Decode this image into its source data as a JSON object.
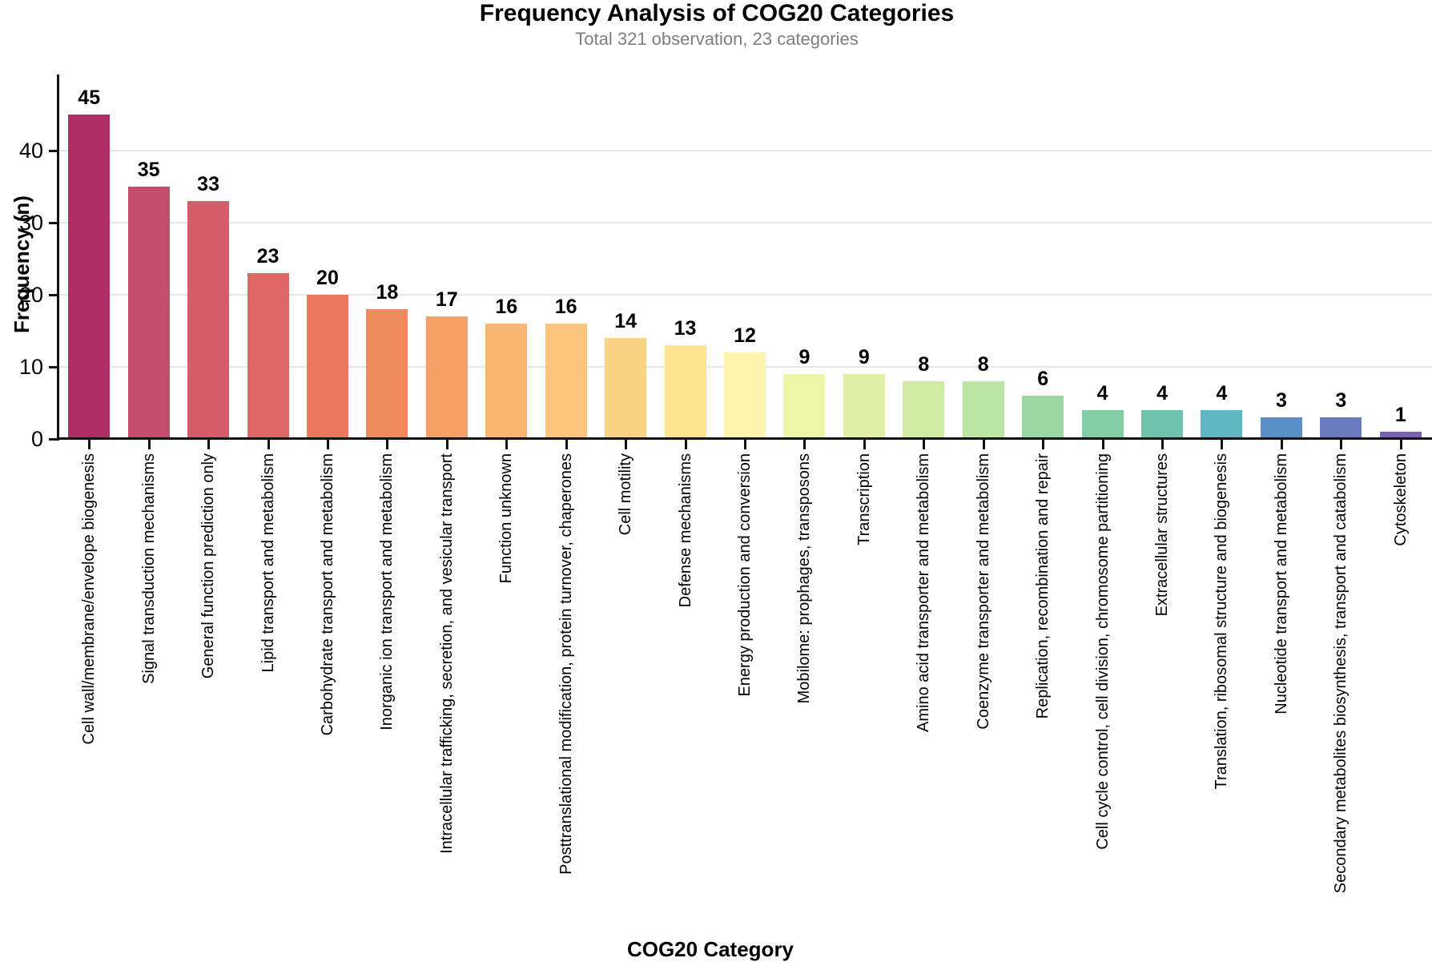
{
  "chart_data": {
    "type": "bar",
    "title": "Frequency Analysis of COG20 Categories",
    "subtitle": "Total 321 observation, 23 categories",
    "xlabel": "COG20 Category",
    "ylabel": "Frequency (n)",
    "total_observations": 321,
    "n_categories": 23,
    "ylim": [
      0,
      50.3
    ],
    "yticks": [
      0,
      10,
      20,
      30,
      40
    ],
    "grid": "horizontal-light",
    "legend": "none",
    "bar_value_labels": true,
    "categories": [
      "Cell wall/membrane/envelope biogenesis",
      "Signal transduction mechanisms",
      "General function prediction only",
      "Lipid transport and metabolism",
      "Carbohydrate transport and metabolism",
      "Inorganic ion transport and metabolism",
      "Intracellular trafficking, secretion, and vesicular transport",
      "Function unknown",
      "Posttranslational modification, protein turnover, chaperones",
      "Cell motility",
      "Defense mechanisms",
      "Energy production and conversion",
      "Mobilome: prophages, transposons",
      "Transcription",
      "Amino acid transporter and metabolism",
      "Coenzyme transporter and metabolism",
      "Replication, recombination and repair",
      "Cell cycle control, cell division, chromosome partitioning",
      "Extracellular structures",
      "Translation, ribosomal structure and biogenesis",
      "Nucleotide transport and metabolism",
      "Secondary metabolites biosynthesis, transport and catabolism",
      "Cytoskeleton"
    ],
    "values": [
      45,
      35,
      33,
      23,
      20,
      18,
      17,
      16,
      16,
      14,
      13,
      12,
      9,
      9,
      8,
      8,
      6,
      4,
      4,
      4,
      3,
      3,
      1
    ],
    "bar_colors": [
      "#AD2D64",
      "#C34D6B",
      "#D55D6B",
      "#DF6866",
      "#E97A60",
      "#F08B5E",
      "#F5A166",
      "#F8B571",
      "#FAC47D",
      "#FBD386",
      "#FCE492",
      "#FDF4AD",
      "#EDF5A7",
      "#DFF0A4",
      "#D2EBA4",
      "#BCE4A4",
      "#9BD7A4",
      "#83CCA6",
      "#70C4AE",
      "#61B6C4",
      "#5B90C7",
      "#6C7BBE",
      "#7763AF"
    ]
  },
  "style": {
    "background": "#ffffff",
    "text_color": "#000000",
    "subtitle_color": "#7e7e7e",
    "grid_color": "#e7e7e7",
    "spine_color": "#111111"
  }
}
